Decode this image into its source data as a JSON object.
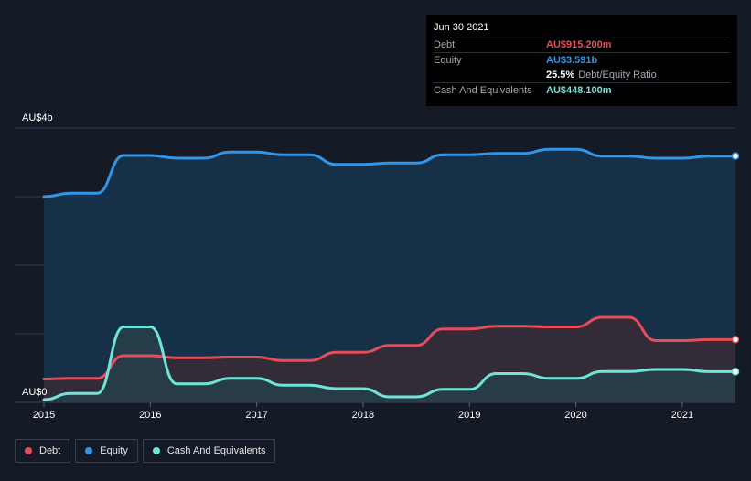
{
  "colors": {
    "debt": "#e64d5a",
    "equity": "#3195e8",
    "cash": "#6ee5d6",
    "debt_fill": "#3a2a36",
    "equity_fill": "#16344f",
    "cash_fill": "#27404a",
    "grid": "#2a3b4e",
    "axis_text": "#ffffff"
  },
  "tooltip": {
    "date": "Jun 30 2021",
    "debt_label": "Debt",
    "debt_value": "AU$915.200m",
    "equity_label": "Equity",
    "equity_value": "AU$3.591b",
    "ratio_value": "25.5%",
    "ratio_label": "Debt/Equity Ratio",
    "cash_label": "Cash And Equivalents",
    "cash_value": "AU$448.100m"
  },
  "legend": [
    {
      "label": "Debt",
      "color_key": "debt"
    },
    {
      "label": "Equity",
      "color_key": "equity"
    },
    {
      "label": "Cash And Equivalents",
      "color_key": "cash"
    }
  ],
  "chart_data": {
    "type": "area",
    "title": "",
    "ylabel_top": "AU$4b",
    "ylabel_bottom": "AU$0",
    "ylim": [
      0,
      4000
    ],
    "xlim": [
      2015,
      2021.5
    ],
    "x_ticks": [
      "2015",
      "2016",
      "2017",
      "2018",
      "2019",
      "2020",
      "2021"
    ],
    "x_tick_values": [
      2015,
      2016,
      2017,
      2018,
      2019,
      2020,
      2021
    ],
    "series": [
      {
        "name": "Equity",
        "color_key": "equity",
        "fill_key": "equity_fill",
        "points": [
          [
            2015.0,
            3000
          ],
          [
            2015.25,
            3050
          ],
          [
            2015.5,
            3050
          ],
          [
            2015.75,
            3600
          ],
          [
            2016.0,
            3600
          ],
          [
            2016.25,
            3560
          ],
          [
            2016.5,
            3560
          ],
          [
            2016.75,
            3650
          ],
          [
            2017.0,
            3650
          ],
          [
            2017.25,
            3610
          ],
          [
            2017.5,
            3610
          ],
          [
            2017.75,
            3470
          ],
          [
            2018.0,
            3470
          ],
          [
            2018.25,
            3490
          ],
          [
            2018.5,
            3490
          ],
          [
            2018.75,
            3610
          ],
          [
            2019.0,
            3610
          ],
          [
            2019.25,
            3630
          ],
          [
            2019.5,
            3630
          ],
          [
            2019.75,
            3690
          ],
          [
            2020.0,
            3690
          ],
          [
            2020.25,
            3590
          ],
          [
            2020.5,
            3590
          ],
          [
            2020.75,
            3560
          ],
          [
            2021.0,
            3560
          ],
          [
            2021.25,
            3591
          ],
          [
            2021.5,
            3591
          ]
        ]
      },
      {
        "name": "Debt",
        "color_key": "debt",
        "fill_key": "debt_fill",
        "points": [
          [
            2015.0,
            340
          ],
          [
            2015.25,
            350
          ],
          [
            2015.5,
            350
          ],
          [
            2015.75,
            680
          ],
          [
            2016.0,
            680
          ],
          [
            2016.25,
            650
          ],
          [
            2016.5,
            650
          ],
          [
            2016.75,
            660
          ],
          [
            2017.0,
            660
          ],
          [
            2017.25,
            610
          ],
          [
            2017.5,
            610
          ],
          [
            2017.75,
            730
          ],
          [
            2018.0,
            730
          ],
          [
            2018.25,
            830
          ],
          [
            2018.5,
            830
          ],
          [
            2018.75,
            1070
          ],
          [
            2019.0,
            1070
          ],
          [
            2019.25,
            1110
          ],
          [
            2019.5,
            1110
          ],
          [
            2019.75,
            1100
          ],
          [
            2020.0,
            1100
          ],
          [
            2020.25,
            1240
          ],
          [
            2020.5,
            1240
          ],
          [
            2020.75,
            900
          ],
          [
            2021.0,
            900
          ],
          [
            2021.25,
            915.2
          ],
          [
            2021.5,
            915.2
          ]
        ]
      },
      {
        "name": "Cash And Equivalents",
        "color_key": "cash",
        "fill_key": "cash_fill",
        "points": [
          [
            2015.0,
            40
          ],
          [
            2015.25,
            130
          ],
          [
            2015.5,
            130
          ],
          [
            2015.75,
            1100
          ],
          [
            2016.0,
            1100
          ],
          [
            2016.25,
            270
          ],
          [
            2016.5,
            270
          ],
          [
            2016.75,
            350
          ],
          [
            2017.0,
            350
          ],
          [
            2017.25,
            250
          ],
          [
            2017.5,
            250
          ],
          [
            2017.75,
            200
          ],
          [
            2018.0,
            200
          ],
          [
            2018.25,
            80
          ],
          [
            2018.5,
            80
          ],
          [
            2018.75,
            190
          ],
          [
            2019.0,
            190
          ],
          [
            2019.25,
            420
          ],
          [
            2019.5,
            420
          ],
          [
            2019.75,
            350
          ],
          [
            2020.0,
            350
          ],
          [
            2020.25,
            450
          ],
          [
            2020.5,
            450
          ],
          [
            2020.75,
            480
          ],
          [
            2021.0,
            480
          ],
          [
            2021.25,
            448.1
          ],
          [
            2021.5,
            448.1
          ]
        ]
      }
    ]
  }
}
